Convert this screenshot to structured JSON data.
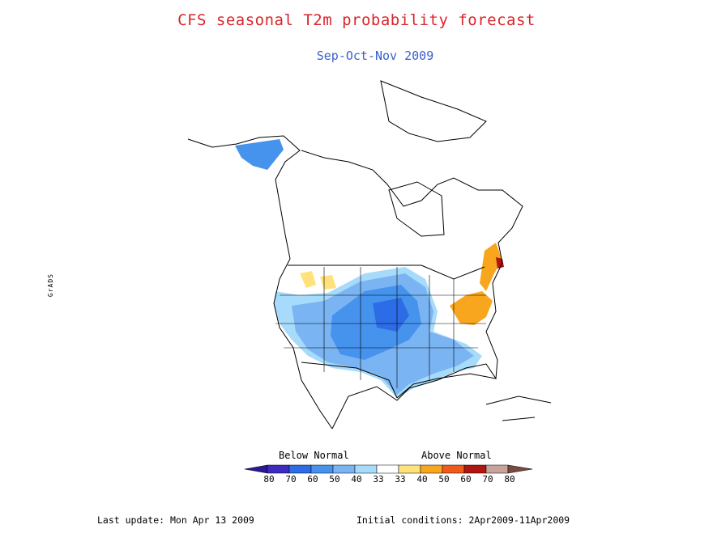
{
  "title": "CFS seasonal T2m probability forecast",
  "subtitle": "Sep-Oct-Nov 2009",
  "legend": {
    "below_label": "Below Normal",
    "above_label": "Above Normal",
    "below_colors": [
      "#3d2bc0",
      "#2c6ce6",
      "#4693ee",
      "#7ab4f2",
      "#a7dbfb"
    ],
    "above_colors": [
      "#ffe27a",
      "#f8a61e",
      "#f05a1c",
      "#b1150f",
      "#c8a39b"
    ],
    "tip_below": "#2a1896",
    "tip_above": "#7a4a40",
    "neutral_color": "#ffffff",
    "ticks": [
      "80",
      "70",
      "60",
      "50",
      "40",
      "33",
      "33",
      "40",
      "50",
      "60",
      "70",
      "80"
    ]
  },
  "side_mark": "GrADS",
  "footer": {
    "last_update": "Last update: Mon Apr 13 2009",
    "initial_conditions": "Initial conditions: 2Apr2009-11Apr2009"
  }
}
